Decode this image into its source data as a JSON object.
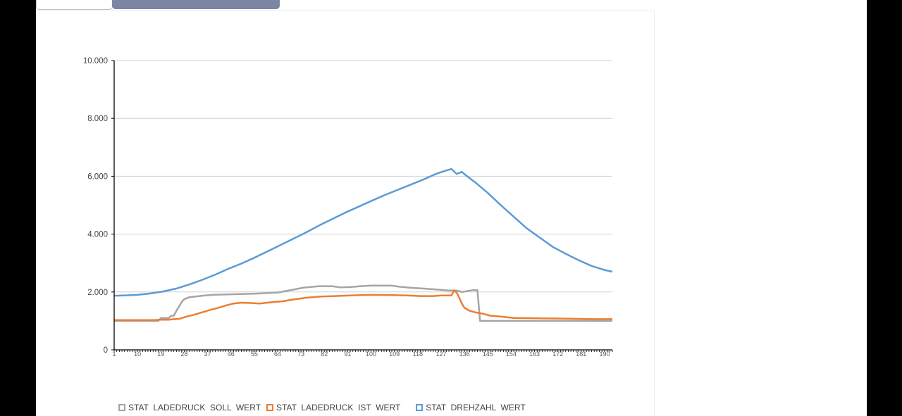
{
  "chart_data": {
    "type": "line",
    "ylim": [
      0,
      10000
    ],
    "yticks": [
      "0",
      "2.000",
      "4.000",
      "6.000",
      "8.000",
      "10.000"
    ],
    "ytick_values": [
      0,
      2000,
      4000,
      6000,
      8000,
      10000
    ],
    "x_count": 193,
    "xticks": [
      "1",
      "10",
      "19",
      "28",
      "37",
      "46",
      "55",
      "64",
      "73",
      "82",
      "91",
      "100",
      "109",
      "118",
      "127",
      "136",
      "145",
      "154",
      "163",
      "172",
      "181",
      "190"
    ],
    "grid": true,
    "legend_position": "bottom",
    "series": [
      {
        "name": "STAT_LADEDRUCK_SOLL_WERT",
        "label": "STAT  LADEDRUCK  SOLL  WERT",
        "color": "#a5a5a5",
        "points": [
          [
            1,
            1000
          ],
          [
            18,
            1000
          ],
          [
            19,
            1100
          ],
          [
            22,
            1100
          ],
          [
            23,
            1180
          ],
          [
            24,
            1180
          ],
          [
            25,
            1350
          ],
          [
            26,
            1500
          ],
          [
            27,
            1650
          ],
          [
            28,
            1750
          ],
          [
            30,
            1820
          ],
          [
            33,
            1850
          ],
          [
            36,
            1880
          ],
          [
            39,
            1900
          ],
          [
            42,
            1910
          ],
          [
            46,
            1920
          ],
          [
            55,
            1940
          ],
          [
            64,
            1980
          ],
          [
            70,
            2080
          ],
          [
            74,
            2150
          ],
          [
            80,
            2200
          ],
          [
            85,
            2200
          ],
          [
            88,
            2160
          ],
          [
            92,
            2170
          ],
          [
            96,
            2200
          ],
          [
            100,
            2220
          ],
          [
            108,
            2220
          ],
          [
            111,
            2180
          ],
          [
            116,
            2140
          ],
          [
            120,
            2120
          ],
          [
            126,
            2080
          ],
          [
            130,
            2050
          ],
          [
            133,
            2050
          ],
          [
            135,
            2000
          ],
          [
            137,
            2030
          ],
          [
            139,
            2060
          ],
          [
            141,
            2060
          ],
          [
            142,
            1000
          ],
          [
            193,
            1000
          ]
        ]
      },
      {
        "name": "STAT_LADEDRUCK_IST_WERT",
        "label": "STAT  LADEDRUCK  IST  WERT",
        "color": "#ed7d31",
        "points": [
          [
            1,
            1030
          ],
          [
            16,
            1030
          ],
          [
            19,
            1040
          ],
          [
            22,
            1040
          ],
          [
            24,
            1060
          ],
          [
            26,
            1070
          ],
          [
            29,
            1150
          ],
          [
            32,
            1220
          ],
          [
            35,
            1300
          ],
          [
            38,
            1380
          ],
          [
            41,
            1450
          ],
          [
            44,
            1530
          ],
          [
            47,
            1600
          ],
          [
            50,
            1630
          ],
          [
            53,
            1620
          ],
          [
            57,
            1600
          ],
          [
            62,
            1650
          ],
          [
            66,
            1680
          ],
          [
            70,
            1740
          ],
          [
            75,
            1800
          ],
          [
            80,
            1840
          ],
          [
            86,
            1860
          ],
          [
            92,
            1880
          ],
          [
            100,
            1900
          ],
          [
            108,
            1890
          ],
          [
            114,
            1880
          ],
          [
            119,
            1860
          ],
          [
            124,
            1860
          ],
          [
            127,
            1880
          ],
          [
            131,
            1880
          ],
          [
            132,
            2050
          ],
          [
            133,
            1980
          ],
          [
            134,
            1800
          ],
          [
            135,
            1600
          ],
          [
            136,
            1450
          ],
          [
            138,
            1350
          ],
          [
            140,
            1300
          ],
          [
            143,
            1250
          ],
          [
            146,
            1180
          ],
          [
            150,
            1150
          ],
          [
            155,
            1100
          ],
          [
            165,
            1090
          ],
          [
            175,
            1080
          ],
          [
            185,
            1060
          ],
          [
            193,
            1060
          ]
        ]
      },
      {
        "name": "STAT_DREHZAHL_WERT",
        "label": "STAT  DREHZAHL  WERT",
        "color": "#5b9bd5",
        "points": [
          [
            1,
            1870
          ],
          [
            5,
            1880
          ],
          [
            10,
            1900
          ],
          [
            15,
            1950
          ],
          [
            20,
            2020
          ],
          [
            25,
            2120
          ],
          [
            30,
            2260
          ],
          [
            35,
            2420
          ],
          [
            40,
            2600
          ],
          [
            45,
            2800
          ],
          [
            50,
            2980
          ],
          [
            55,
            3180
          ],
          [
            60,
            3400
          ],
          [
            65,
            3620
          ],
          [
            70,
            3840
          ],
          [
            75,
            4060
          ],
          [
            80,
            4300
          ],
          [
            85,
            4520
          ],
          [
            90,
            4740
          ],
          [
            95,
            4940
          ],
          [
            100,
            5140
          ],
          [
            105,
            5340
          ],
          [
            110,
            5520
          ],
          [
            115,
            5700
          ],
          [
            120,
            5880
          ],
          [
            125,
            6080
          ],
          [
            129,
            6200
          ],
          [
            131,
            6250
          ],
          [
            133,
            6080
          ],
          [
            135,
            6150
          ],
          [
            137,
            6000
          ],
          [
            140,
            5800
          ],
          [
            145,
            5420
          ],
          [
            150,
            5000
          ],
          [
            155,
            4600
          ],
          [
            160,
            4200
          ],
          [
            165,
            3880
          ],
          [
            170,
            3560
          ],
          [
            175,
            3320
          ],
          [
            180,
            3100
          ],
          [
            185,
            2900
          ],
          [
            190,
            2760
          ],
          [
            193,
            2700
          ]
        ]
      }
    ]
  }
}
